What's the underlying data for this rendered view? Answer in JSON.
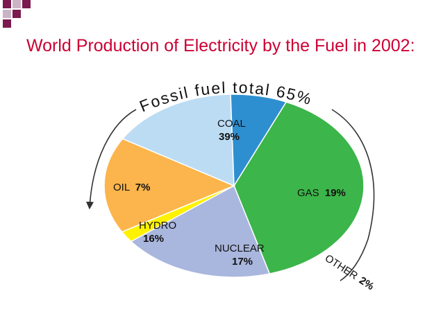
{
  "slide": {
    "title": "World Production of Electricity by the Fuel in 2002:"
  },
  "colors": {
    "title": "#cc0033",
    "corner_dark": "#7a1a4e",
    "corner_light": "#c9b3c4",
    "coal": "#3cb54a",
    "oil": "#2e8fd0",
    "gas": "#a9b6dd",
    "other": "#fff200",
    "nuclear": "#fbb54c",
    "hydro": "#bcdcf4",
    "arrow": "#333333"
  },
  "chart_data": {
    "type": "pie",
    "title": "",
    "annotation": "Fossil fuel total 65%",
    "slices": [
      {
        "label": "COAL",
        "value": 39,
        "value_label": "39%"
      },
      {
        "label": "GAS",
        "value": 19,
        "value_label": "19%"
      },
      {
        "label": "OTHER",
        "value": 2,
        "value_label": "2%"
      },
      {
        "label": "NUCLEAR",
        "value": 17,
        "value_label": "17%"
      },
      {
        "label": "HYDRO",
        "value": 16,
        "value_label": "16%"
      },
      {
        "label": "OIL",
        "value": 7,
        "value_label": "7%"
      }
    ]
  }
}
